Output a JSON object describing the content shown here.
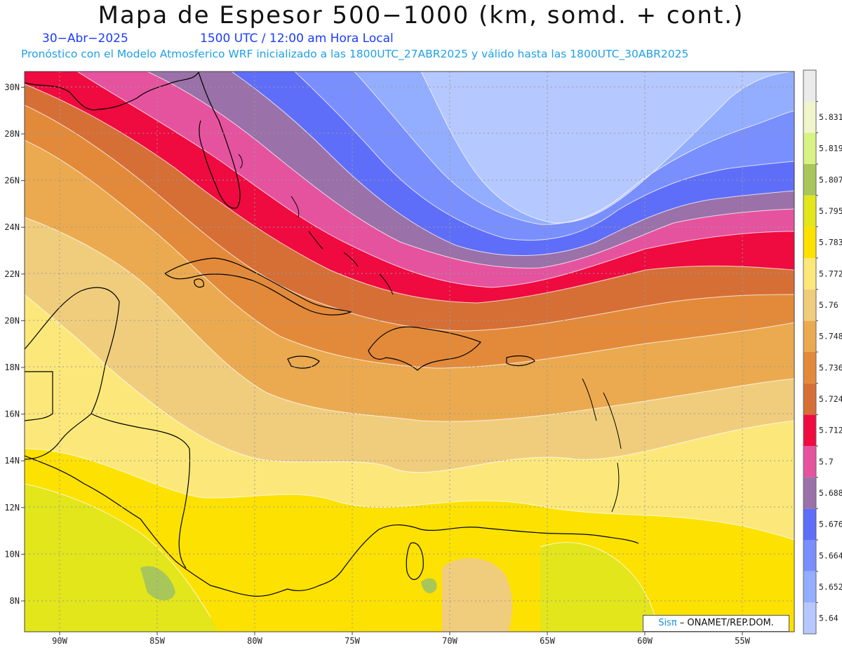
{
  "title": "Mapa de Espesor 500−1000 (km, somd. + cont.)",
  "date": "30−Abr−2025",
  "time_label": "1500 UTC / 12:00 am Hora Local",
  "model_line": "Pronóstico con el Modelo Atmosferico WRF inicializado a las 1800UTC_27ABR2025 y válido hasta las  1800UTC_30ABR2025",
  "credit": {
    "brand": "Sisπ",
    "sep": " – ",
    "org": "ONAMET/REP.DOM."
  },
  "map": {
    "lon_range": [
      -92.0,
      -52.3
    ],
    "lat_range": [
      6.8,
      30.8
    ],
    "lon_ticks": [
      "90W",
      "85W",
      "80W",
      "75W",
      "70W",
      "65W",
      "60W",
      "55W"
    ],
    "lat_ticks": [
      "8N",
      "10N",
      "12N",
      "14N",
      "16N",
      "18N",
      "20N",
      "22N",
      "24N",
      "26N",
      "28N",
      "30N"
    ],
    "grid": "dotted"
  },
  "colorbar": {
    "labels": [
      "5.64",
      "5.652",
      "5.664",
      "5.676",
      "5.688",
      "5.7",
      "5.712",
      "5.724",
      "5.736",
      "5.748",
      "5.76",
      "5.772",
      "5.783",
      "5.795",
      "5.807",
      "5.819",
      "5.831"
    ],
    "colors": [
      "#b5c8ff",
      "#93adff",
      "#7a8ffe",
      "#5f6ef8",
      "#9a71a8",
      "#e5539f",
      "#ef0a40",
      "#d66f36",
      "#e38a3a",
      "#ebaa4f",
      "#f0cd7d",
      "#fce87a",
      "#fde100",
      "#e2e61a",
      "#a8c65a",
      "#d9f284",
      "#f1f5cc",
      "#ebebeb"
    ]
  }
}
